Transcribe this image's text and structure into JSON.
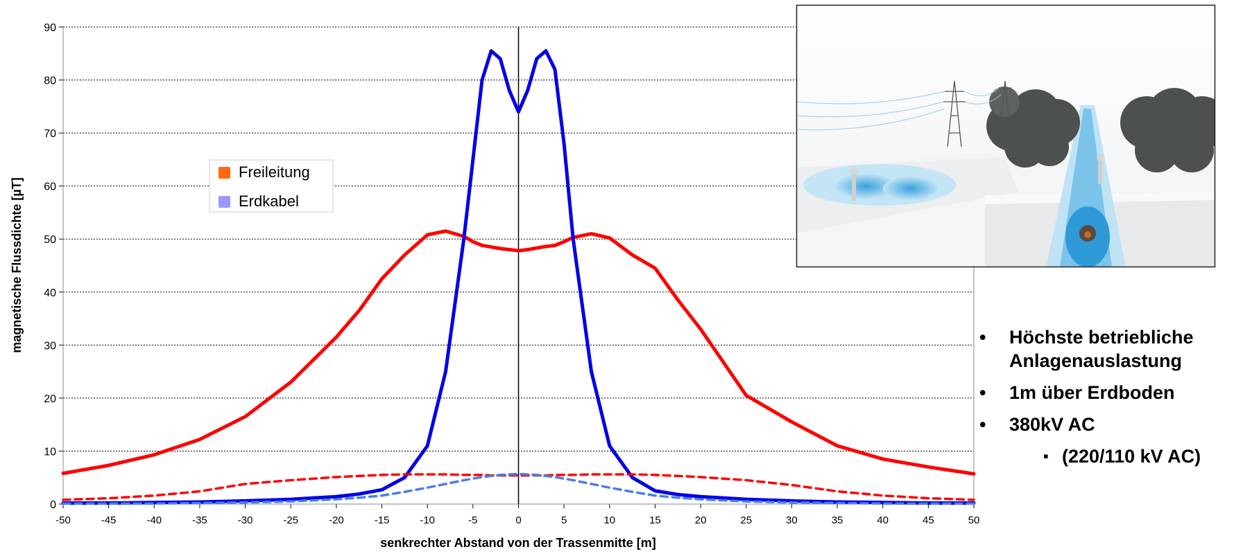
{
  "chart_data": {
    "type": "line",
    "x_label": "senkrechter Abstand von der Trassenmitte [m]",
    "y_label": "magnetische Flussdichte  [µT]",
    "x": [
      -50,
      -45,
      -40,
      -35,
      -30,
      -25,
      -20,
      -17.5,
      -15,
      -12.5,
      -10,
      -8,
      -6,
      -5,
      -4,
      -3,
      -2,
      -1,
      0,
      1,
      2,
      3,
      4,
      5,
      6,
      8,
      10,
      12.5,
      15,
      17.5,
      20,
      25,
      30,
      35,
      40,
      45,
      50
    ],
    "series": [
      {
        "name": "Freileitung",
        "color": "#ff0000",
        "legend_color": "#ff6a13",
        "dashed": false,
        "values": [
          5.8,
          7.3,
          9.3,
          12.2,
          16.5,
          23,
          31.5,
          36.5,
          42.5,
          47,
          50.8,
          51.5,
          50.5,
          49.5,
          48.8,
          48.5,
          48.2,
          48,
          47.8,
          48,
          48.3,
          48.6,
          48.8,
          49.5,
          50.3,
          51,
          50.2,
          47,
          44.5,
          38.5,
          33,
          20.5,
          15.5,
          11,
          8.5,
          7,
          5.7
        ]
      },
      {
        "name": "Erdkabel",
        "color": "#0000e6",
        "legend_color": "#9999ff",
        "dashed": false,
        "values": [
          0.2,
          0.2,
          0.3,
          0.4,
          0.6,
          0.9,
          1.4,
          1.9,
          2.7,
          5,
          11,
          25,
          50,
          65,
          80,
          85.5,
          84,
          78,
          74,
          78,
          84,
          85.5,
          82,
          68,
          50,
          25,
          11,
          5,
          2.5,
          1.8,
          1.4,
          0.9,
          0.6,
          0.4,
          0.3,
          0.2,
          0.2
        ]
      },
      {
        "color": "#ff0000",
        "dashed": true,
        "values": [
          0.8,
          1.1,
          1.6,
          2.4,
          3.8,
          4.5,
          5.1,
          5.3,
          5.5,
          5.6,
          5.6,
          5.6,
          5.5,
          5.5,
          5.5,
          5.4,
          5.4,
          5.4,
          5.4,
          5.4,
          5.4,
          5.4,
          5.5,
          5.5,
          5.5,
          5.6,
          5.6,
          5.6,
          5.5,
          5.3,
          5.1,
          4.5,
          3.6,
          2.4,
          1.6,
          1.1,
          0.8
        ]
      },
      {
        "color": "#4a7de8",
        "dashed": true,
        "values": [
          0.1,
          0.1,
          0.1,
          0.2,
          0.3,
          0.5,
          0.9,
          1.2,
          1.6,
          2.3,
          3.1,
          3.8,
          4.5,
          4.8,
          5.1,
          5.3,
          5.5,
          5.6,
          5.7,
          5.6,
          5.5,
          5.3,
          5.1,
          4.8,
          4.5,
          3.8,
          3.1,
          2.3,
          1.6,
          1.2,
          0.9,
          0.5,
          0.3,
          0.2,
          0.1,
          0.1,
          0.1
        ]
      }
    ],
    "xlim": [
      -50,
      50
    ],
    "ylim": [
      0,
      90
    ],
    "xticks": [
      -50,
      -45,
      -40,
      -35,
      -30,
      -25,
      -20,
      -15,
      -10,
      -5,
      0,
      5,
      10,
      15,
      20,
      25,
      30,
      35,
      40,
      45,
      50
    ],
    "yticks": [
      0,
      10,
      20,
      30,
      40,
      50,
      60,
      70,
      80,
      90
    ],
    "grid": true
  },
  "bullets": [
    "Höchste betriebliche Anlagenauslastung",
    "1m über Erdboden",
    "380kV AC"
  ],
  "sub_bullets": [
    "(220/110 kV AC)"
  ]
}
